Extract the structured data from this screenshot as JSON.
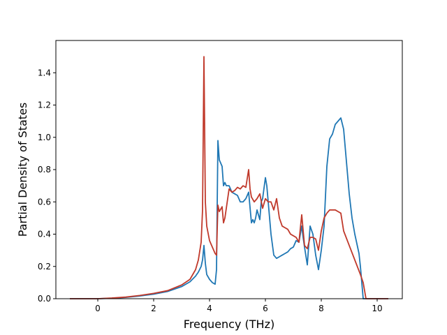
{
  "chart_data": {
    "type": "line",
    "title": "",
    "xlabel": "Frequency (THz)",
    "ylabel": "Partial Density of States",
    "xlim": [
      -1.5,
      10.9
    ],
    "ylim": [
      0.0,
      1.6
    ],
    "xticks": [
      0,
      2,
      4,
      6,
      8,
      10
    ],
    "xtick_labels": [
      "0",
      "2",
      "4",
      "6",
      "8",
      "10"
    ],
    "yticks": [
      0.0,
      0.2,
      0.4,
      0.6,
      0.8,
      1.0,
      1.2,
      1.4
    ],
    "ytick_labels": [
      "0.0",
      "0.2",
      "0.4",
      "0.6",
      "0.8",
      "1.0",
      "1.2",
      "1.4"
    ],
    "grid": false,
    "legend": "none",
    "series": [
      {
        "color": "#1f77b4",
        "x": [
          -1.0,
          -0.5,
          0.0,
          0.5,
          1.0,
          1.5,
          2.0,
          2.5,
          3.0,
          3.3,
          3.5,
          3.6,
          3.7,
          3.75,
          3.8,
          3.85,
          3.9,
          4.0,
          4.1,
          4.2,
          4.25,
          4.3,
          4.35,
          4.45,
          4.5,
          4.55,
          4.6,
          4.7,
          4.8,
          4.9,
          5.0,
          5.1,
          5.2,
          5.3,
          5.4,
          5.5,
          5.55,
          5.6,
          5.65,
          5.7,
          5.8,
          5.85,
          5.9,
          6.0,
          6.05,
          6.1,
          6.2,
          6.3,
          6.4,
          6.5,
          6.6,
          6.7,
          6.8,
          6.9,
          7.0,
          7.1,
          7.2,
          7.3,
          7.35,
          7.4,
          7.5,
          7.6,
          7.7,
          7.8,
          7.9,
          8.0,
          8.1,
          8.2,
          8.3,
          8.4,
          8.5,
          8.6,
          8.7,
          8.8,
          8.9,
          9.0,
          9.1,
          9.2,
          9.3,
          9.35,
          9.4,
          9.45,
          9.5,
          9.6,
          9.8,
          10.0,
          10.4
        ],
        "values": [
          0.0,
          0.0,
          0.0,
          0.003,
          0.008,
          0.017,
          0.028,
          0.045,
          0.075,
          0.105,
          0.14,
          0.165,
          0.2,
          0.24,
          0.33,
          0.22,
          0.15,
          0.12,
          0.1,
          0.09,
          0.18,
          0.98,
          0.86,
          0.82,
          0.7,
          0.72,
          0.7,
          0.7,
          0.66,
          0.65,
          0.64,
          0.6,
          0.6,
          0.62,
          0.66,
          0.47,
          0.49,
          0.47,
          0.5,
          0.55,
          0.49,
          0.6,
          0.62,
          0.75,
          0.7,
          0.6,
          0.4,
          0.27,
          0.25,
          0.26,
          0.27,
          0.28,
          0.29,
          0.31,
          0.32,
          0.36,
          0.35,
          0.45,
          0.38,
          0.32,
          0.21,
          0.45,
          0.4,
          0.27,
          0.18,
          0.3,
          0.45,
          0.82,
          0.99,
          1.02,
          1.08,
          1.1,
          1.12,
          1.05,
          0.85,
          0.65,
          0.5,
          0.4,
          0.32,
          0.28,
          0.2,
          0.1,
          0.0,
          0.0,
          0.0,
          0.0,
          0.0
        ]
      },
      {
        "color": "#c0392b",
        "x": [
          -1.0,
          -0.5,
          0.0,
          0.5,
          1.0,
          1.5,
          2.0,
          2.5,
          3.0,
          3.3,
          3.5,
          3.6,
          3.7,
          3.75,
          3.8,
          3.85,
          3.9,
          4.0,
          4.1,
          4.2,
          4.25,
          4.3,
          4.35,
          4.45,
          4.5,
          4.55,
          4.6,
          4.7,
          4.8,
          4.9,
          5.0,
          5.1,
          5.2,
          5.3,
          5.4,
          5.45,
          5.5,
          5.6,
          5.7,
          5.8,
          5.9,
          6.0,
          6.1,
          6.2,
          6.3,
          6.4,
          6.5,
          6.6,
          6.7,
          6.8,
          6.9,
          7.0,
          7.1,
          7.2,
          7.3,
          7.4,
          7.5,
          7.6,
          7.7,
          7.8,
          7.9,
          8.0,
          8.1,
          8.2,
          8.3,
          8.4,
          8.5,
          8.6,
          8.7,
          8.8,
          9.0,
          9.2,
          9.4,
          9.5,
          9.6,
          9.8,
          10.0,
          10.4
        ],
        "values": [
          0.0,
          0.0,
          0.0,
          0.004,
          0.01,
          0.02,
          0.033,
          0.05,
          0.085,
          0.12,
          0.18,
          0.24,
          0.35,
          0.55,
          1.5,
          0.6,
          0.45,
          0.36,
          0.32,
          0.28,
          0.27,
          0.58,
          0.54,
          0.57,
          0.47,
          0.5,
          0.56,
          0.68,
          0.66,
          0.67,
          0.69,
          0.68,
          0.7,
          0.69,
          0.8,
          0.68,
          0.63,
          0.6,
          0.62,
          0.65,
          0.56,
          0.62,
          0.6,
          0.6,
          0.55,
          0.62,
          0.5,
          0.45,
          0.44,
          0.43,
          0.4,
          0.39,
          0.38,
          0.35,
          0.52,
          0.33,
          0.31,
          0.38,
          0.38,
          0.37,
          0.3,
          0.42,
          0.5,
          0.53,
          0.55,
          0.55,
          0.55,
          0.54,
          0.53,
          0.42,
          0.33,
          0.24,
          0.15,
          0.1,
          0.0,
          0.0,
          0.0,
          0.0
        ]
      }
    ]
  }
}
